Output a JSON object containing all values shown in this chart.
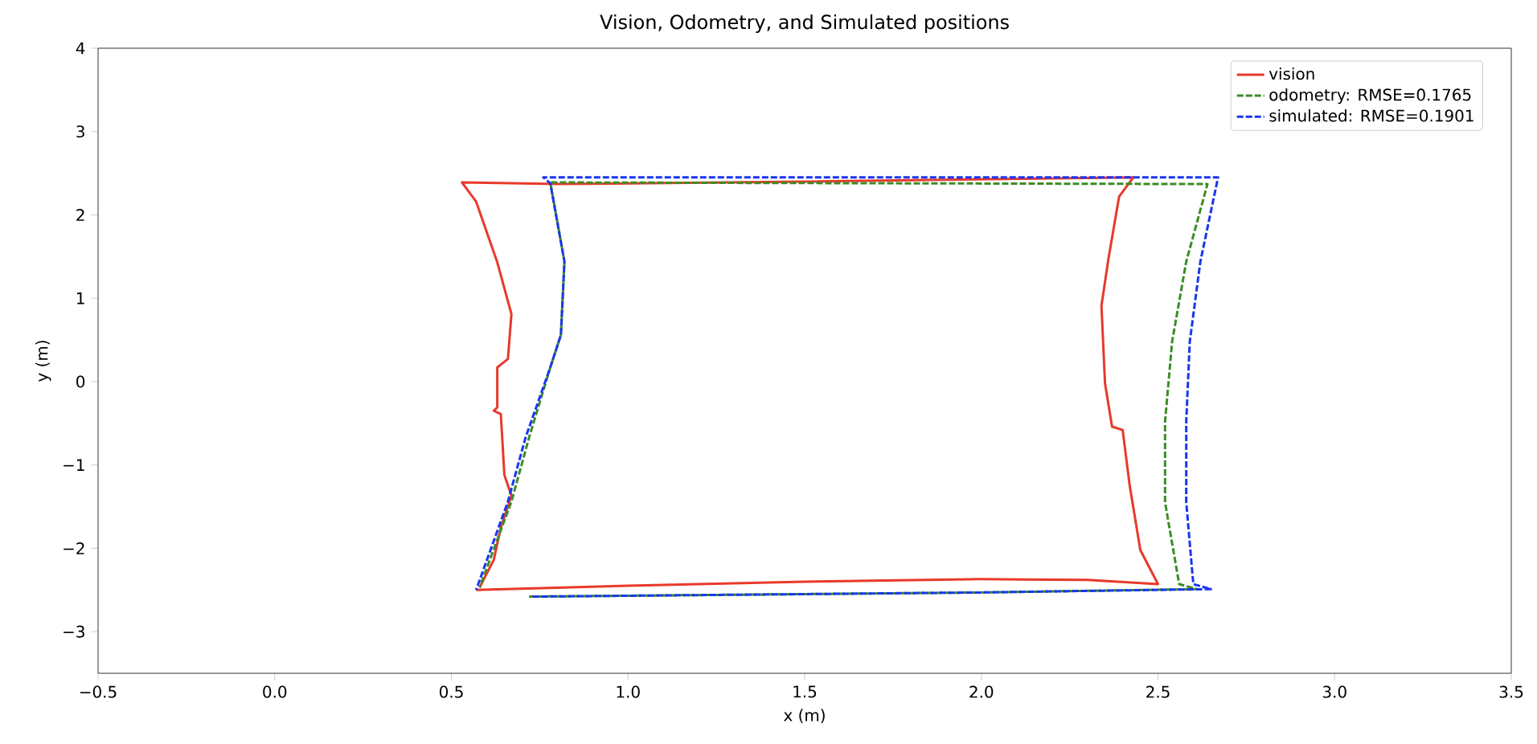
{
  "chart_data": {
    "type": "line",
    "title": "Vision, Odometry, and Simulated positions",
    "xlabel": "x (m)",
    "ylabel": "y (m)",
    "xlim": [
      -0.5,
      3.5
    ],
    "ylim": [
      -3.5,
      4
    ],
    "xticks": [
      {
        "value": -0.5,
        "label": "−0.5"
      },
      {
        "value": 0,
        "label": "0.0"
      },
      {
        "value": 0.5,
        "label": "0.5"
      },
      {
        "value": 1,
        "label": "1.0"
      },
      {
        "value": 1.5,
        "label": "1.5"
      },
      {
        "value": 2,
        "label": "2.0"
      },
      {
        "value": 2.5,
        "label": "2.5"
      },
      {
        "value": 3,
        "label": "3.0"
      },
      {
        "value": 3.5,
        "label": "3.5"
      }
    ],
    "yticks": [
      {
        "value": -3,
        "label": "−3"
      },
      {
        "value": -2,
        "label": "−2"
      },
      {
        "value": -1,
        "label": "−1"
      },
      0,
      1,
      2,
      3,
      4
    ],
    "legend": "top right",
    "grid": false,
    "series": [
      {
        "name": "vision",
        "color": "#e8392b",
        "line_style": "solid",
        "x": [
          0.57,
          1.0,
          1.5,
          2.0,
          2.3,
          2.5,
          2.45,
          2.42,
          2.4,
          2.37,
          2.35,
          2.34,
          2.36,
          2.39,
          2.43,
          1.5,
          0.8,
          0.53,
          0.57,
          0.63,
          0.67,
          0.66,
          0.63,
          0.63,
          0.62,
          0.64,
          0.65,
          0.67,
          0.64,
          0.62,
          0.58
        ],
        "values": [
          -2.5,
          -2.45,
          -2.4,
          -2.37,
          -2.38,
          -2.43,
          -2.02,
          -1.25,
          -0.58,
          -0.54,
          -0.02,
          0.91,
          1.48,
          2.22,
          2.45,
          2.4,
          2.37,
          2.39,
          2.16,
          1.43,
          0.81,
          0.27,
          0.17,
          -0.31,
          -0.35,
          -0.39,
          -1.12,
          -1.37,
          -1.75,
          -2.14,
          -2.47
        ]
      },
      {
        "name": "odometry: RMSE=0.1765",
        "color": "#3c8c28",
        "line_style": "dashed",
        "x": [
          0.72,
          1.5,
          2.0,
          2.61,
          2.56,
          2.52,
          2.52,
          2.54,
          2.58,
          2.64,
          0.78,
          0.82,
          0.81,
          0.78,
          0.72,
          0.67,
          0.58
        ],
        "values": [
          -2.58,
          -2.55,
          -2.53,
          -2.49,
          -2.43,
          -1.45,
          -0.48,
          0.48,
          1.44,
          2.37,
          2.39,
          1.44,
          0.56,
          0.17,
          -0.67,
          -1.44,
          -2.47
        ]
      },
      {
        "name": "simulated: RMSE=0.1901",
        "color": "#1a35f0",
        "line_style": "dashed",
        "x": [
          0.73,
          1.5,
          2.0,
          2.65,
          2.6,
          2.58,
          2.58,
          2.59,
          2.62,
          2.67,
          0.76,
          0.78,
          0.82,
          0.81,
          0.78,
          0.71,
          0.66,
          0.57
        ],
        "values": [
          -2.58,
          -2.55,
          -2.53,
          -2.49,
          -2.43,
          -1.45,
          -0.48,
          0.48,
          1.44,
          2.45,
          2.45,
          2.38,
          1.44,
          0.56,
          0.17,
          -0.67,
          -1.44,
          -2.5
        ]
      }
    ]
  }
}
